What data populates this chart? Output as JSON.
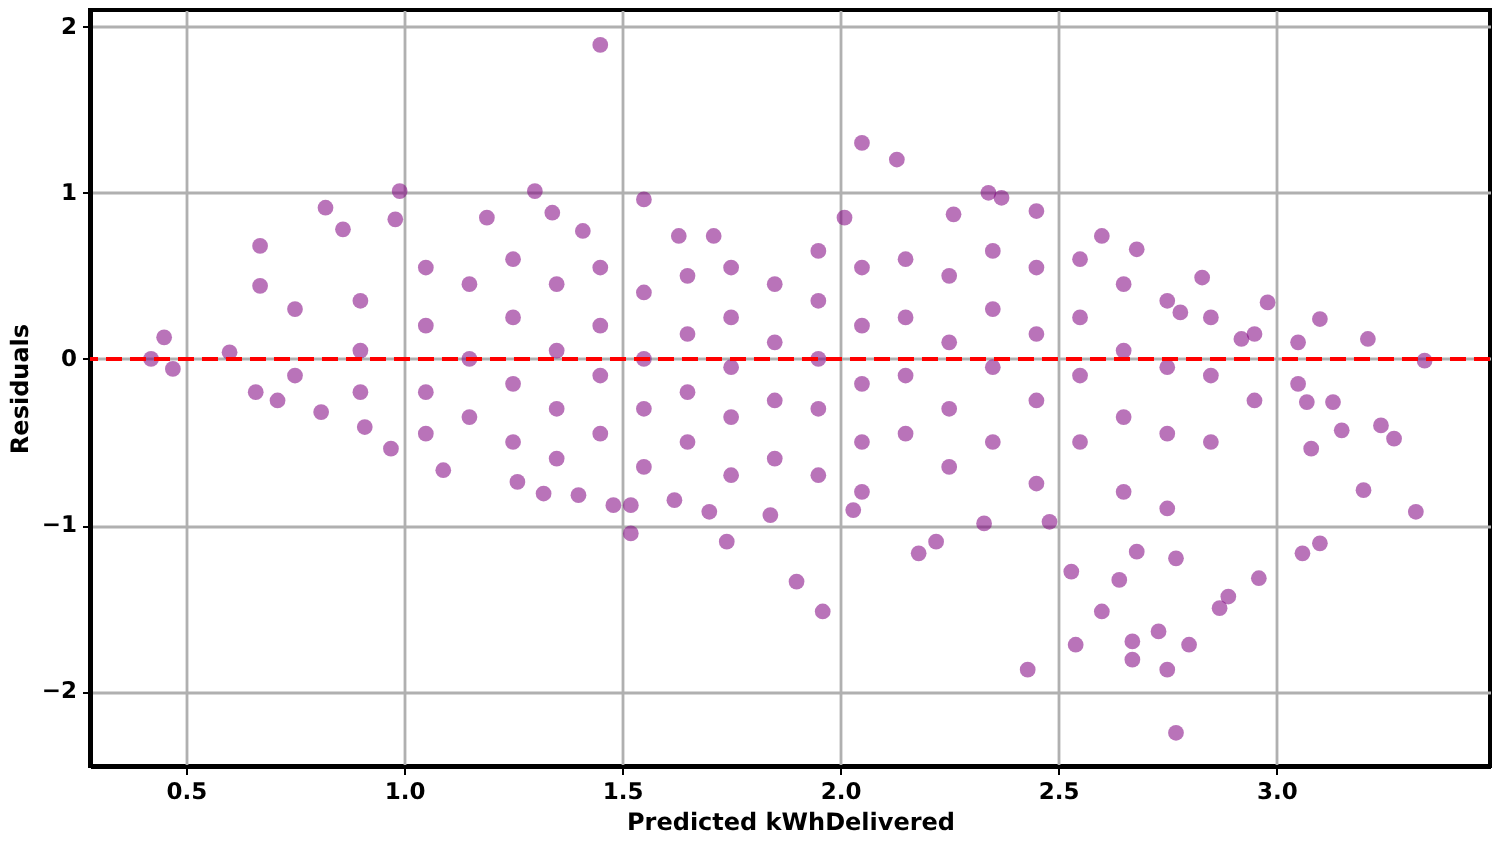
{
  "chart_data": {
    "type": "scatter",
    "xlabel": "Predicted kWhDelivered",
    "ylabel": "Residuals",
    "x": [
      0.42,
      0.45,
      0.47,
      0.6,
      0.66,
      0.71,
      0.67,
      0.67,
      0.82,
      0.86,
      0.99,
      0.98,
      1.45,
      1.3,
      1.34,
      1.55,
      1.19,
      1.41,
      1.71,
      1.63,
      2.05,
      2.13,
      2.34,
      2.37,
      2.01,
      2.26,
      2.45,
      2.6,
      2.68,
      2.83,
      2.98,
      3.1,
      3.21,
      3.34,
      2.78,
      2.92,
      3.13,
      3.07,
      1.9,
      1.96,
      2.18,
      2.22,
      2.43,
      2.53,
      2.54,
      2.6,
      2.64,
      2.67,
      2.67,
      2.73,
      2.75,
      2.77,
      2.8,
      2.87,
      2.89,
      2.96,
      3.06,
      3.1,
      3.2,
      3.32,
      3.27,
      3.24,
      3.15,
      3.08,
      2.77,
      2.68,
      2.48,
      2.33,
      2.03,
      1.84,
      1.74,
      1.52,
      1.52,
      1.48,
      1.4,
      1.32,
      1.26,
      1.09,
      0.97,
      0.91,
      0.81,
      1.7,
      1.62,
      0.75,
      0.75,
      0.9,
      0.9,
      0.9,
      1.05,
      1.05,
      1.05,
      1.05,
      1.15,
      1.15,
      1.15,
      1.25,
      1.25,
      1.25,
      1.25,
      1.35,
      1.35,
      1.35,
      1.35,
      1.45,
      1.45,
      1.45,
      1.45,
      1.55,
      1.55,
      1.55,
      1.55,
      1.65,
      1.65,
      1.65,
      1.65,
      1.75,
      1.75,
      1.75,
      1.75,
      1.75,
      1.85,
      1.85,
      1.85,
      1.85,
      1.95,
      1.95,
      1.95,
      1.95,
      1.95,
      2.05,
      2.05,
      2.05,
      2.05,
      2.05,
      2.15,
      2.15,
      2.15,
      2.15,
      2.25,
      2.25,
      2.25,
      2.25,
      2.35,
      2.35,
      2.35,
      2.35,
      2.45,
      2.45,
      2.45,
      2.45,
      2.55,
      2.55,
      2.55,
      2.55,
      2.65,
      2.65,
      2.65,
      2.65,
      2.75,
      2.75,
      2.75,
      2.75,
      2.85,
      2.85,
      2.85,
      2.95,
      2.95,
      3.05,
      3.05
    ],
    "values": [
      0.0,
      0.13,
      -0.06,
      0.04,
      -0.2,
      -0.25,
      0.68,
      0.44,
      0.91,
      0.78,
      1.01,
      0.84,
      1.89,
      1.01,
      0.88,
      0.96,
      0.85,
      0.77,
      0.74,
      0.74,
      1.3,
      1.2,
      1.0,
      0.97,
      0.85,
      0.87,
      0.89,
      0.74,
      0.66,
      0.49,
      0.34,
      0.24,
      0.12,
      -0.01,
      0.28,
      0.12,
      -0.26,
      -0.26,
      -1.34,
      -1.52,
      -1.17,
      -1.1,
      -1.87,
      -1.28,
      -1.72,
      -1.52,
      -1.33,
      -1.7,
      -1.81,
      -1.64,
      -1.87,
      -2.25,
      -1.72,
      -1.5,
      -1.43,
      -1.32,
      -1.17,
      -1.11,
      -0.79,
      -0.92,
      -0.48,
      -0.4,
      -0.43,
      -0.54,
      -1.2,
      -1.16,
      -0.98,
      -0.99,
      -0.91,
      -0.94,
      -1.1,
      -1.05,
      -0.88,
      -0.88,
      -0.82,
      -0.81,
      -0.74,
      -0.67,
      -0.54,
      -0.41,
      -0.32,
      -0.92,
      -0.85,
      0.3,
      -0.1,
      0.35,
      0.05,
      -0.2,
      0.55,
      0.2,
      -0.2,
      -0.45,
      0.45,
      0.0,
      -0.35,
      0.6,
      0.25,
      -0.15,
      -0.5,
      0.45,
      0.05,
      -0.3,
      -0.6,
      0.55,
      0.2,
      -0.1,
      -0.45,
      0.4,
      0.0,
      -0.3,
      -0.65,
      0.5,
      0.15,
      -0.2,
      -0.5,
      0.55,
      0.25,
      -0.05,
      -0.35,
      -0.7,
      0.45,
      0.1,
      -0.25,
      -0.6,
      0.65,
      0.35,
      0.0,
      -0.3,
      -0.7,
      0.55,
      0.2,
      -0.15,
      -0.5,
      -0.8,
      0.6,
      0.25,
      -0.1,
      -0.45,
      0.5,
      0.1,
      -0.3,
      -0.65,
      0.65,
      0.3,
      -0.05,
      -0.5,
      0.55,
      0.15,
      -0.25,
      -0.75,
      0.6,
      0.25,
      -0.1,
      -0.5,
      0.45,
      0.05,
      -0.35,
      -0.8,
      0.35,
      -0.05,
      -0.45,
      -0.9,
      0.25,
      -0.1,
      -0.5,
      0.15,
      -0.25,
      0.1,
      -0.15
    ],
    "color": "#800080",
    "marker": "circle",
    "grid": true,
    "xlim": [
      0.28,
      3.49
    ],
    "ylim": [
      -2.45,
      2.1
    ],
    "xticks": [
      0.5,
      {
        "value": 1,
        "label": "1.0"
      },
      1.5,
      {
        "value": 2,
        "label": "2.0"
      },
      2.5,
      {
        "value": 3,
        "label": "3.0"
      }
    ],
    "yticks": [
      -2,
      -1,
      0,
      1,
      2
    ],
    "ref_lines": [
      {
        "axis": "y",
        "value": 0,
        "color": "#ff0000",
        "line_style": "dashed"
      }
    ]
  }
}
